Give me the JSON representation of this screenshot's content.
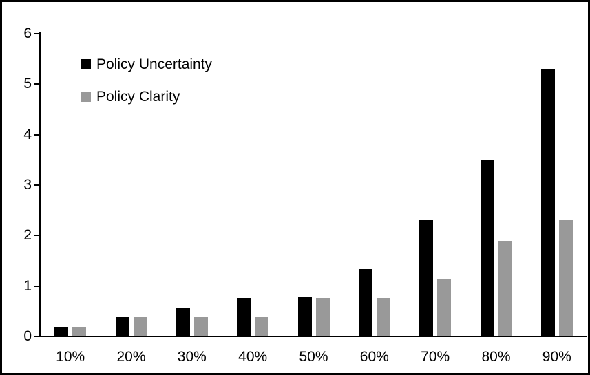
{
  "chart_data": {
    "type": "bar",
    "title": "",
    "categories": [
      "10%",
      "20%",
      "30%",
      "40%",
      "50%",
      "60%",
      "70%",
      "80%",
      "90%"
    ],
    "series": [
      {
        "name": "Policy Uncertainty",
        "color": "#000000",
        "values": [
          0.19,
          0.38,
          0.57,
          0.76,
          0.78,
          1.34,
          2.31,
          3.5,
          5.3
        ]
      },
      {
        "name": "Policy Clarity",
        "color": "#999999",
        "values": [
          0.19,
          0.38,
          0.38,
          0.38,
          0.77,
          0.77,
          1.15,
          1.9,
          2.3
        ]
      }
    ],
    "xlabel": "",
    "ylabel": "",
    "ylim": [
      0,
      6
    ],
    "ytick_step": 1,
    "ytick_labels": [
      "0",
      "1",
      "2",
      "3",
      "4",
      "5",
      "6"
    ],
    "grid": false,
    "legend_position": "top-left-inside",
    "axis_color": "#000000",
    "frame_border_color": "#000000",
    "background_color": "#ffffff"
  }
}
